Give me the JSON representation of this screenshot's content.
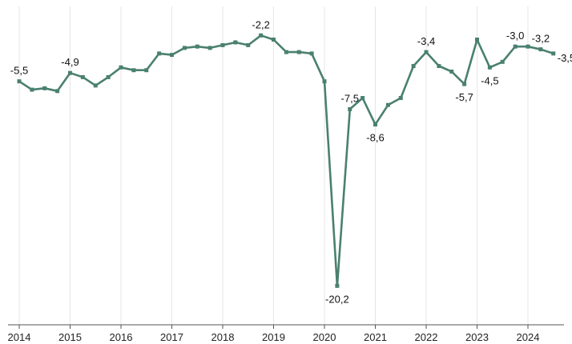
{
  "chart_data": {
    "type": "line",
    "title": "",
    "xlabel": "",
    "ylabel": "",
    "x_ticks": [
      "2014",
      "2015",
      "2016",
      "2017",
      "2018",
      "2019",
      "2020",
      "2021",
      "2022",
      "2023",
      "2024"
    ],
    "ylim": [
      -23,
      0
    ],
    "grid": "vertical",
    "colors": {
      "line": "#4a8070",
      "grid": "#e6e6e6",
      "axis": "#555555",
      "text": "#222222"
    },
    "series": [
      {
        "x": [
          2014.0,
          2014.25,
          2014.5,
          2014.75,
          2015.0,
          2015.25,
          2015.5,
          2015.75,
          2016.0,
          2016.25,
          2016.5,
          2016.75,
          2017.0,
          2017.25,
          2017.5,
          2017.75,
          2018.0,
          2018.25,
          2018.5,
          2018.75,
          2019.0,
          2019.25,
          2019.5,
          2019.75,
          2020.0,
          2020.25,
          2020.5,
          2020.75,
          2021.0,
          2021.25,
          2021.5,
          2021.75,
          2022.0,
          2022.25,
          2022.5,
          2022.75,
          2023.0,
          2023.25,
          2023.5,
          2023.75,
          2024.0,
          2024.25,
          2024.5
        ],
        "values": [
          -5.5,
          -6.1,
          -6.0,
          -6.2,
          -4.9,
          -5.2,
          -5.8,
          -5.2,
          -4.5,
          -4.7,
          -4.7,
          -3.5,
          -3.6,
          -3.1,
          -3.0,
          -3.1,
          -2.9,
          -2.7,
          -2.9,
          -2.2,
          -2.5,
          -3.4,
          -3.4,
          -3.5,
          -5.5,
          -20.2,
          -7.5,
          -6.7,
          -8.6,
          -7.2,
          -6.7,
          -4.4,
          -3.4,
          -4.4,
          -4.8,
          -5.7,
          -2.5,
          -4.5,
          -4.1,
          -3.0,
          -3.0,
          -3.2,
          -3.5
        ]
      }
    ],
    "point_labels": [
      {
        "index": 0,
        "text": "-5,5",
        "position": "above"
      },
      {
        "index": 4,
        "text": "-4,9",
        "position": "above"
      },
      {
        "index": 19,
        "text": "-2,2",
        "position": "above"
      },
      {
        "index": 25,
        "text": "-20,2",
        "position": "below"
      },
      {
        "index": 26,
        "text": "-7,5",
        "position": "above"
      },
      {
        "index": 28,
        "text": "-8,6",
        "position": "below"
      },
      {
        "index": 32,
        "text": "-3,4",
        "position": "above"
      },
      {
        "index": 35,
        "text": "-5,7",
        "position": "below"
      },
      {
        "index": 37,
        "text": "-4,5",
        "position": "below"
      },
      {
        "index": 39,
        "text": "-3,0",
        "position": "above"
      },
      {
        "index": 41,
        "text": "-3,2",
        "position": "above"
      },
      {
        "index": 42,
        "text": "-3,5",
        "position": "right"
      }
    ]
  }
}
